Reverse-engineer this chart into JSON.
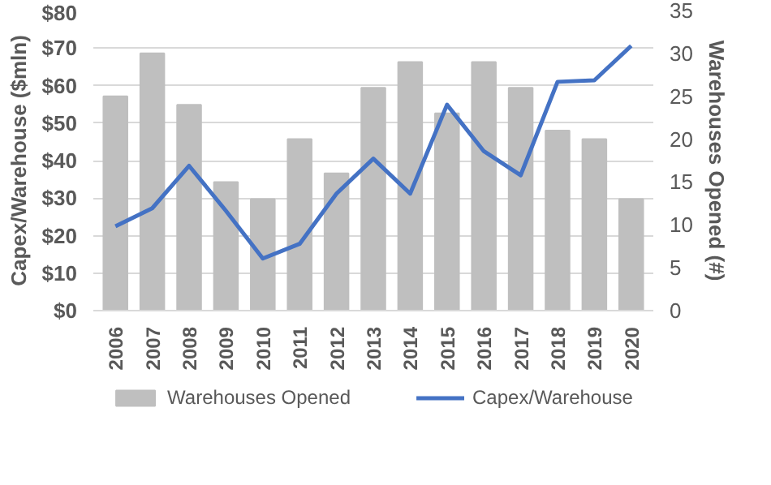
{
  "chart_data": {
    "type": "bar",
    "categories": [
      "2006",
      "2007",
      "2008",
      "2009",
      "2010",
      "2011",
      "2012",
      "2013",
      "2014",
      "2015",
      "2016",
      "2017",
      "2018",
      "2019",
      "2020"
    ],
    "series": [
      {
        "name": "Warehouses Opened",
        "color": "#bfbfbf",
        "axis": "y2",
        "values": [
          25,
          30,
          24,
          15,
          13,
          20,
          16,
          26,
          29,
          23,
          29,
          26,
          21,
          20,
          13
        ]
      },
      {
        "name": "Capex/Warehouse",
        "type": "line",
        "color": "#4472c4",
        "values": [
          22.5,
          27.3,
          38.6,
          26.6,
          13.9,
          17.8,
          31.2,
          40.5,
          31.2,
          54.9,
          42.5,
          36.1,
          61,
          61.4,
          70.6
        ]
      }
    ],
    "ylabel": "Capex/Warehouse ($mln)",
    "y2label": "Warehouses Opened (#)",
    "ylim": [
      0,
      80
    ],
    "yticks": [
      {
        "value": 0,
        "label": "$0"
      },
      {
        "value": 10,
        "label": "$10"
      },
      {
        "value": 20,
        "label": "$20"
      },
      {
        "value": 30,
        "label": "$30"
      },
      {
        "value": 40,
        "label": "$40"
      },
      {
        "value": 50,
        "label": "$50"
      },
      {
        "value": 60,
        "label": "$60"
      },
      {
        "value": 70,
        "label": "$70"
      },
      {
        "value": 80,
        "label": "$80"
      }
    ],
    "y2lim": [
      0,
      35
    ],
    "y2ticks": [
      0,
      5,
      10,
      15,
      20,
      25,
      30,
      35
    ],
    "grid": "y",
    "legend": "bottom",
    "marker": "none",
    "line_style": "solid"
  }
}
